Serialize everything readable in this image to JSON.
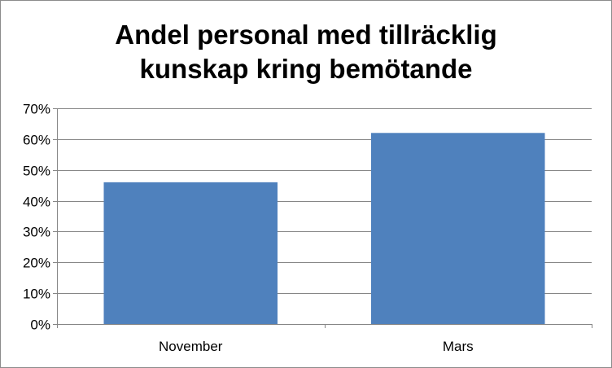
{
  "chart_data": {
    "type": "bar",
    "title_lines": [
      "Andel personal med tillräcklig",
      "kunskap kring bemötande"
    ],
    "categories": [
      "November",
      "Mars"
    ],
    "values": [
      46,
      62
    ],
    "ylim": [
      0,
      70
    ],
    "yticks": [
      0,
      10,
      20,
      30,
      40,
      50,
      60,
      70
    ],
    "ytick_labels": [
      "0%",
      "10%",
      "20%",
      "30%",
      "40%",
      "50%",
      "60%",
      "70%"
    ],
    "xlabel": "",
    "ylabel": "",
    "grid": true,
    "legend": "none",
    "bar_color": "#4f81bd",
    "grid_color": "#868686"
  }
}
